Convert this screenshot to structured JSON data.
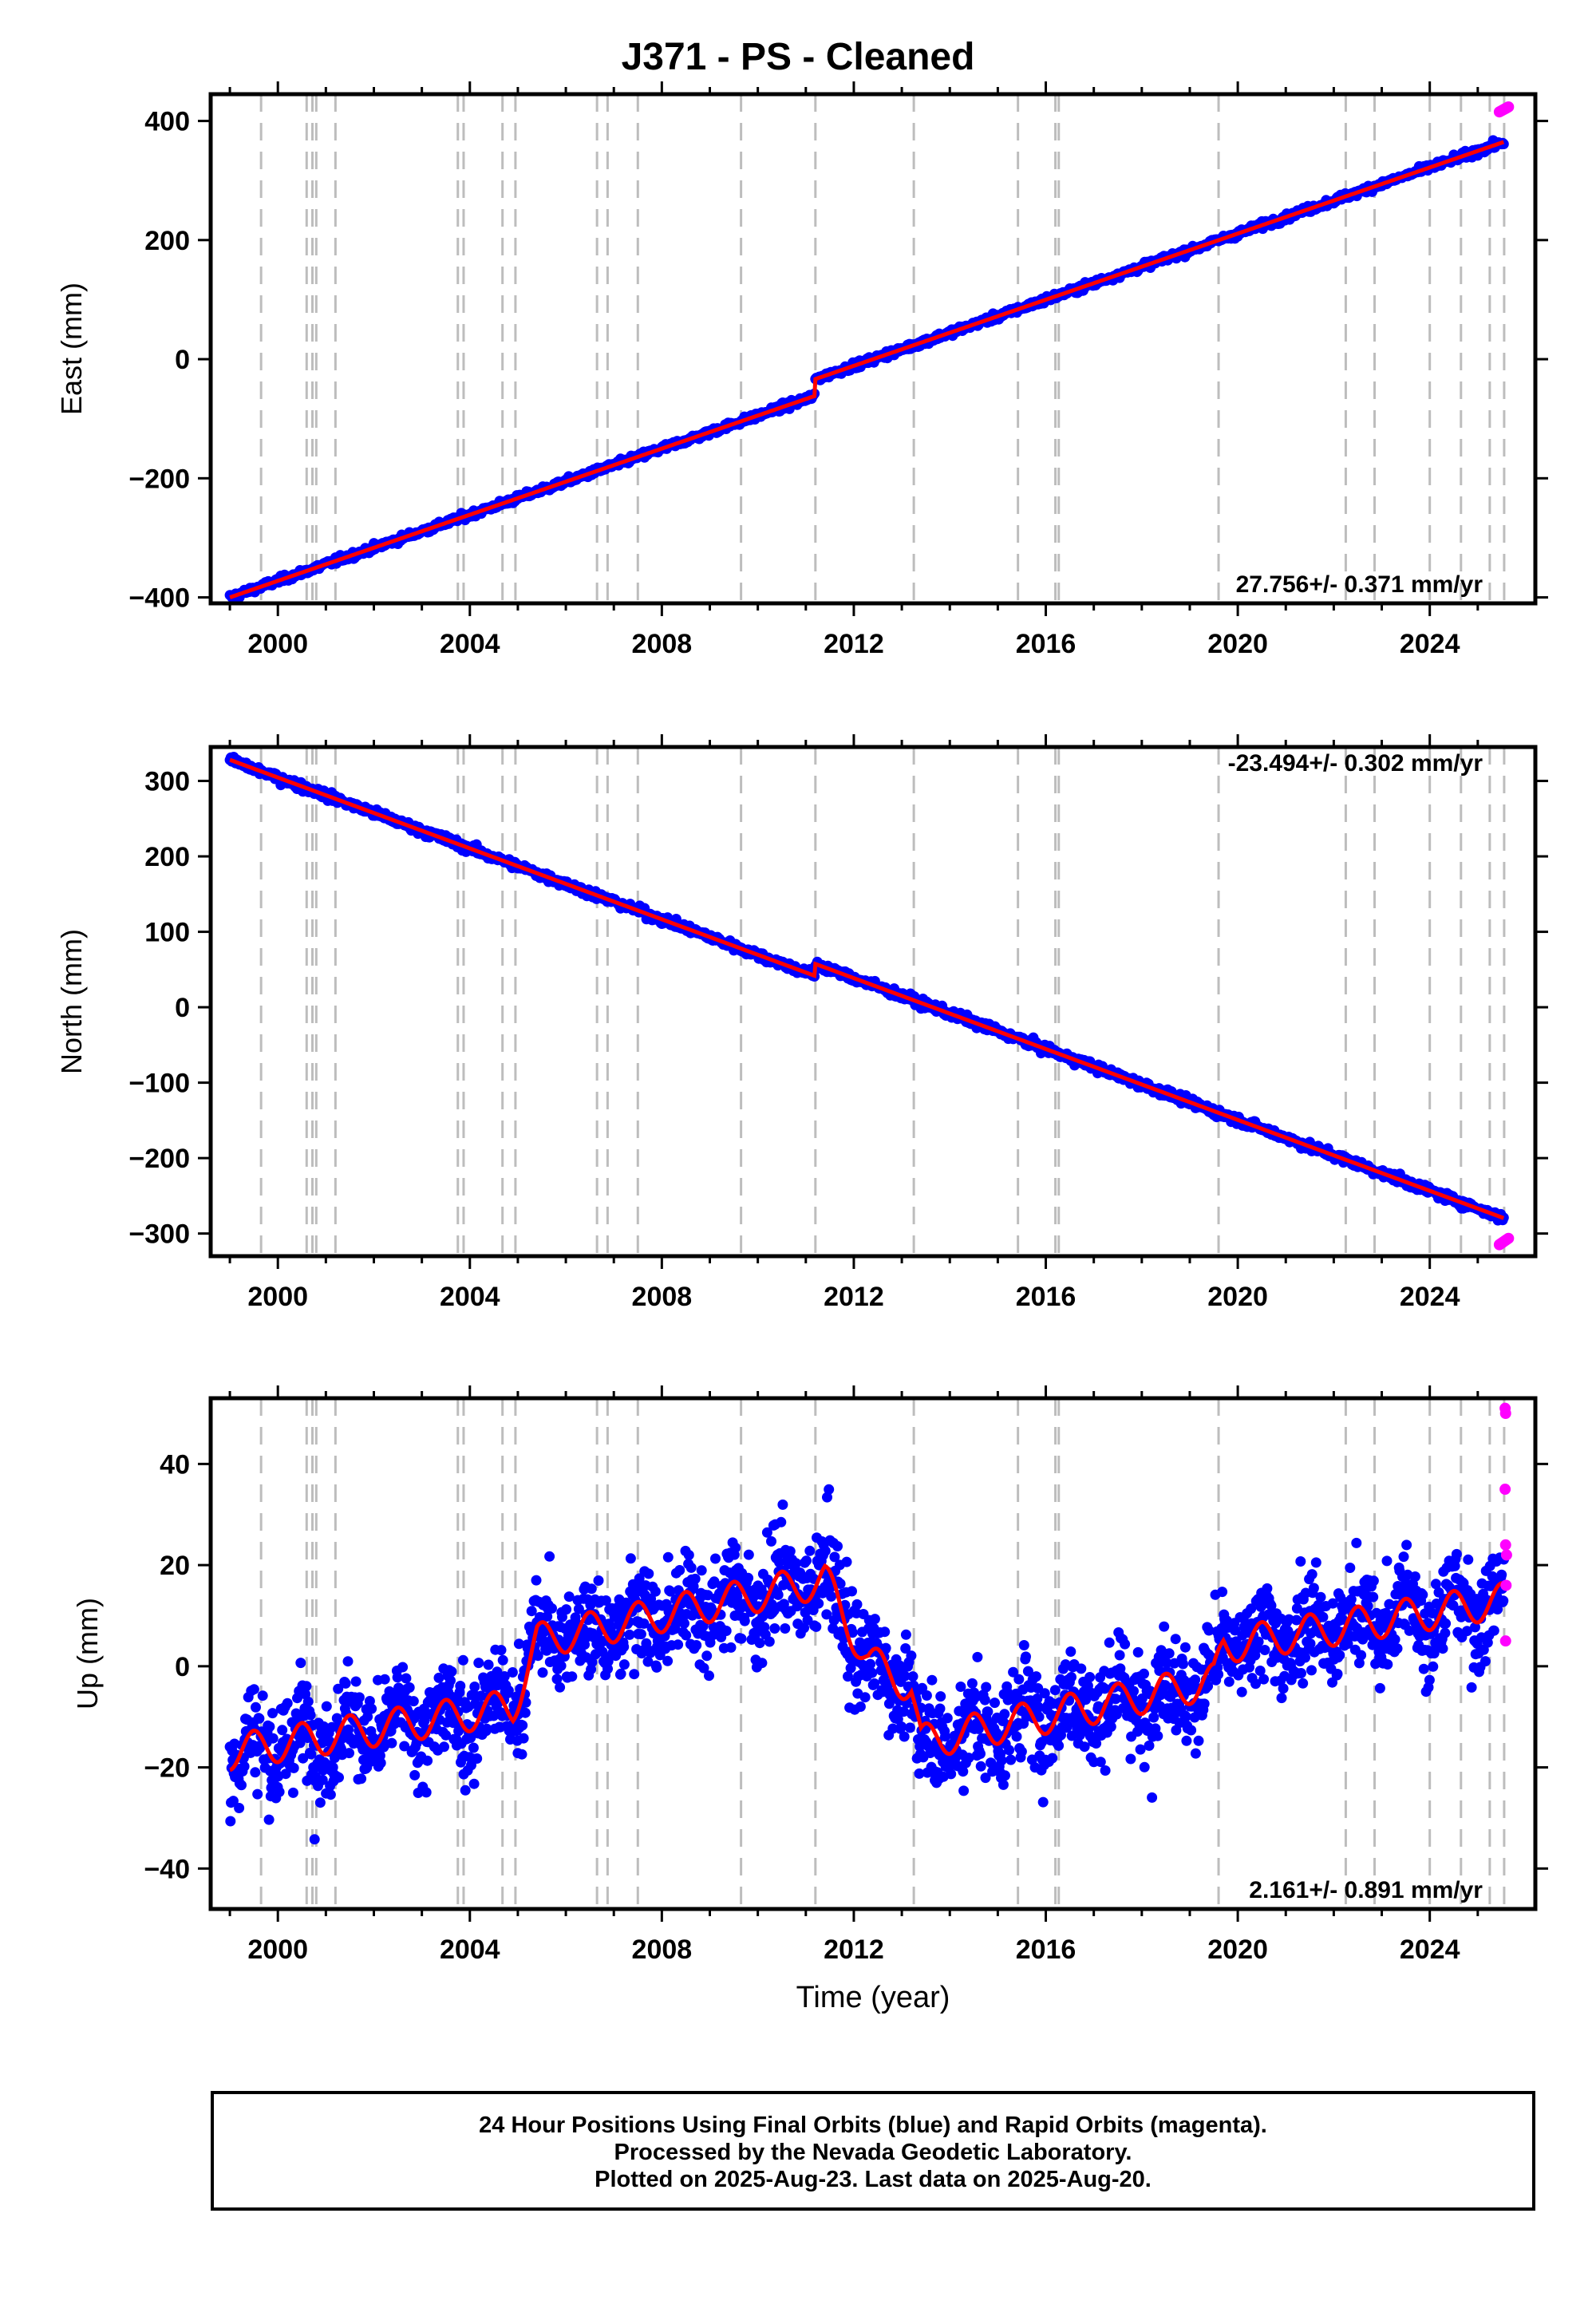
{
  "title": "J371  - PS - Cleaned",
  "footer": {
    "line1": "24 Hour Positions Using Final Orbits (blue) and Rapid Orbits (magenta).",
    "line2": "Processed by the Nevada Geodetic Laboratory.",
    "line3": "Plotted on 2025-Aug-23. Last data on 2025-Aug-20."
  },
  "colors": {
    "final_orbits": "#0000ff",
    "rapid_orbits": "#ff00ff",
    "model": "#ff0000",
    "events": "#bdbdbd"
  },
  "chart_data": [
    {
      "type": "scatter",
      "ylabel": "East (mm)",
      "xlabel": "",
      "xlim": [
        1998.6,
        2026.2
      ],
      "ylim": [
        -410,
        445
      ],
      "xticks": [
        2000,
        2004,
        2008,
        2012,
        2016,
        2020,
        2024
      ],
      "yticks": [
        -400,
        -200,
        0,
        200,
        400
      ],
      "rate_text": "27.756+/- 0.371 mm/yr",
      "rate_position": "bottom-right",
      "event_lines": [
        1999.65,
        2000.6,
        2000.72,
        2000.8,
        2001.2,
        2003.75,
        2003.87,
        2004.68,
        2004.95,
        2006.65,
        2006.87,
        2007.5,
        2009.65,
        2011.2,
        2013.25,
        2015.42,
        2016.2,
        2016.27,
        2019.6,
        2022.25,
        2022.85,
        2024.0,
        2024.65,
        2025.25,
        2025.55
      ],
      "series": [
        {
          "name": "Final Orbits",
          "color": "#0000ff",
          "model": "linear",
          "start": [
            1999.0,
            -400
          ],
          "rate": 27.756,
          "offsets": [
            [
              2011.19,
              28
            ]
          ],
          "scatter": 4
        },
        {
          "name": "Rapid Orbits",
          "color": "#ff00ff",
          "x_range": [
            2025.45,
            2025.64
          ],
          "y_end": 420
        }
      ]
    },
    {
      "type": "scatter",
      "ylabel": "North (mm)",
      "xlabel": "",
      "xlim": [
        1998.6,
        2026.2
      ],
      "ylim": [
        -330,
        345
      ],
      "xticks": [
        2000,
        2004,
        2008,
        2012,
        2016,
        2020,
        2024
      ],
      "yticks": [
        -300,
        -200,
        -100,
        0,
        100,
        200,
        300
      ],
      "rate_text": "-23.494+/- 0.302 mm/yr",
      "rate_position": "top-right",
      "event_lines": [
        1999.65,
        2000.6,
        2000.72,
        2000.8,
        2001.2,
        2003.75,
        2003.87,
        2004.68,
        2004.95,
        2006.65,
        2006.87,
        2007.5,
        2009.65,
        2011.2,
        2013.25,
        2015.42,
        2016.2,
        2016.27,
        2019.6,
        2022.25,
        2022.85,
        2024.0,
        2024.65,
        2025.25,
        2025.55
      ],
      "series": [
        {
          "name": "Final Orbits",
          "color": "#0000ff",
          "model": "linear",
          "start": [
            1999.0,
            328
          ],
          "rate": -23.494,
          "offsets": [
            [
              2011.19,
              16
            ]
          ],
          "scatter": 4
        },
        {
          "name": "Rapid Orbits",
          "color": "#ff00ff",
          "x_range": [
            2025.45,
            2025.64
          ],
          "y_end": -310
        }
      ]
    },
    {
      "type": "scatter",
      "ylabel": "Up (mm)",
      "xlabel": "Time (year)",
      "xlim": [
        1998.6,
        2026.2
      ],
      "ylim": [
        -48,
        53
      ],
      "xticks": [
        2000,
        2004,
        2008,
        2012,
        2016,
        2020,
        2024
      ],
      "yticks": [
        -40,
        -20,
        0,
        20,
        40
      ],
      "rate_text": "2.161+/- 0.891 mm/yr",
      "rate_position": "bottom-right",
      "event_lines": [
        1999.65,
        2000.6,
        2000.72,
        2000.8,
        2001.2,
        2003.75,
        2003.87,
        2004.68,
        2004.95,
        2006.65,
        2006.87,
        2007.5,
        2009.65,
        2011.2,
        2013.25,
        2015.42,
        2016.2,
        2016.27,
        2019.6,
        2022.25,
        2022.85,
        2024.0,
        2024.65,
        2025.25,
        2025.55
      ],
      "series": [
        {
          "name": "Final Orbits",
          "color": "#0000ff",
          "model": "piecewise-seasonal",
          "breakpoints": [
            [
              1999.0,
              -17
            ],
            [
              2004.9,
              -8
            ],
            [
              2005.4,
              5
            ],
            [
              2011.4,
              17
            ],
            [
              2012.3,
              1
            ],
            [
              2013.2,
              -4
            ],
            [
              2013.4,
              -15
            ],
            [
              2019.5,
              -3
            ],
            [
              2019.7,
              4
            ],
            [
              2025.55,
              13
            ]
          ],
          "seasonal_amplitude": 3.5,
          "scatter": 7
        },
        {
          "name": "Rapid Orbits",
          "color": "#ff00ff",
          "points": [
            [
              2025.57,
              51
            ],
            [
              2025.58,
              50
            ],
            [
              2025.57,
              35
            ],
            [
              2025.58,
              24
            ],
            [
              2025.6,
              22
            ],
            [
              2025.59,
              16
            ],
            [
              2025.58,
              5
            ]
          ]
        }
      ]
    }
  ]
}
